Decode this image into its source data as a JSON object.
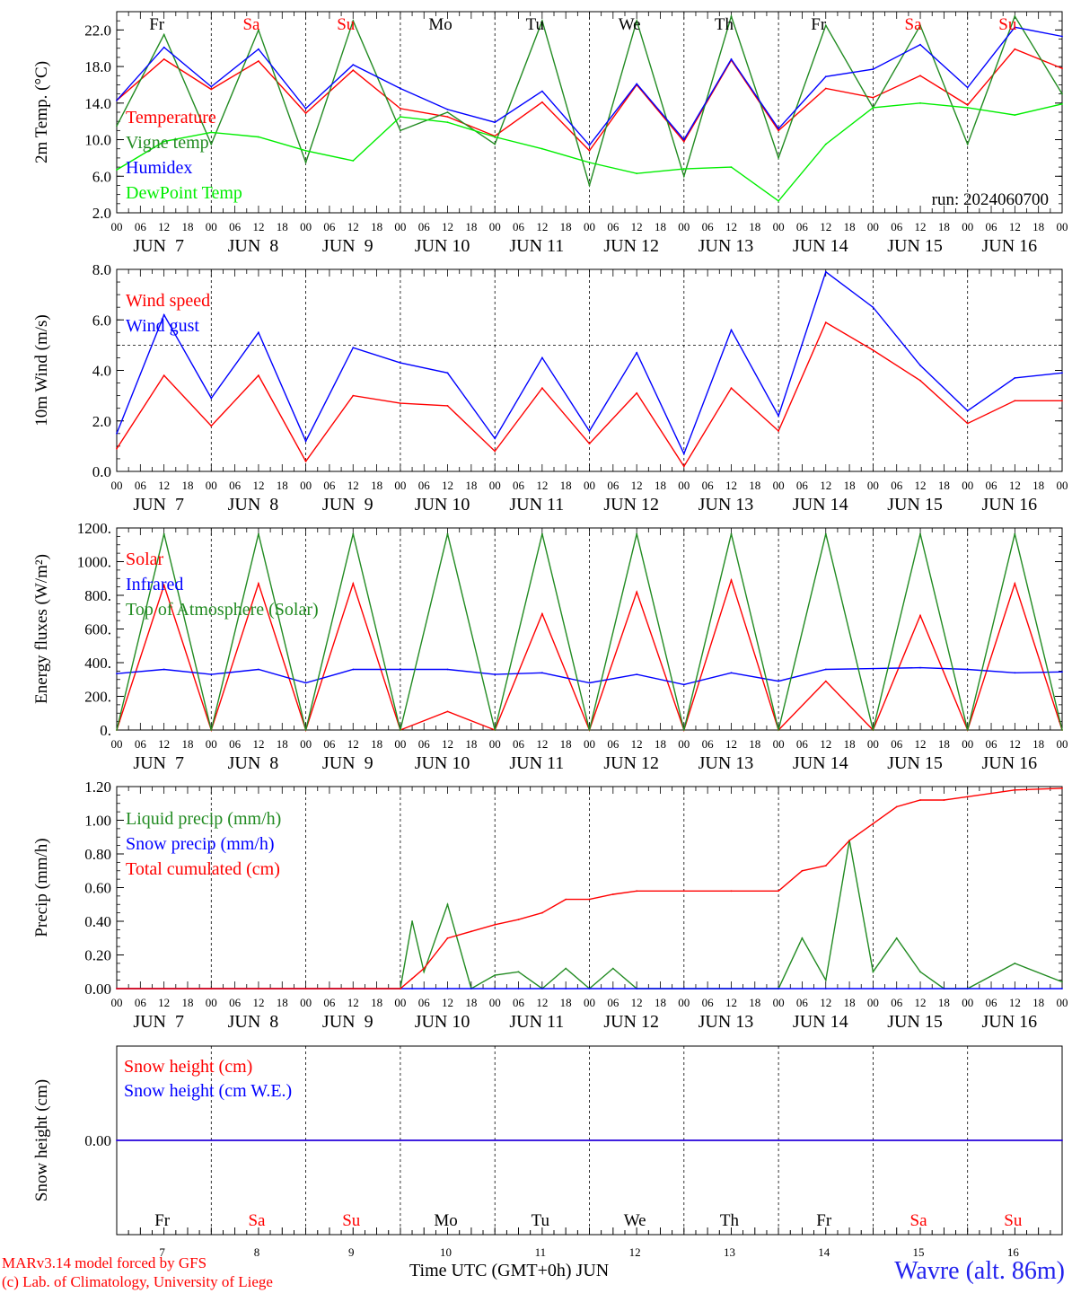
{
  "chart_data": [
    {
      "type": "line",
      "ylabel": "2m Temp. (°C)",
      "ylim": [
        2,
        24
      ],
      "yticks": [
        "2.0",
        "6.0",
        "10.0",
        "14.0",
        "18.0",
        "22.0"
      ],
      "ytick_values": [
        2,
        6,
        10,
        14,
        18,
        22
      ],
      "annotation": "run: 2024060700",
      "x_hours": [
        0,
        12,
        24,
        36,
        48,
        60,
        72,
        84,
        96,
        108,
        120,
        132,
        144,
        156,
        168,
        180,
        192,
        204,
        216,
        228,
        240
      ],
      "series": [
        {
          "name": "Temperature",
          "color": "#ff0000",
          "values": [
            14.3,
            18.8,
            15.5,
            18.6,
            12.9,
            17.6,
            13.4,
            12.5,
            10.4,
            14.1,
            8.8,
            16.0,
            9.8,
            18.7,
            11.0,
            15.6,
            14.6,
            17.0,
            13.8,
            19.9,
            17.8
          ]
        },
        {
          "name": "Vigne temp",
          "color": "#228b22",
          "values": [
            11.5,
            21.5,
            9.5,
            22.0,
            7.5,
            23.0,
            11.0,
            13.0,
            9.5,
            23.0,
            5.0,
            23.0,
            6.0,
            23.5,
            8.0,
            22.5,
            13.5,
            22.5,
            9.5,
            23.5,
            15.0
          ]
        },
        {
          "name": "Humidex",
          "color": "#0000ff",
          "values": [
            14.3,
            20.1,
            15.8,
            19.9,
            13.4,
            18.2,
            15.6,
            13.3,
            11.9,
            15.3,
            9.4,
            16.1,
            10.0,
            18.8,
            11.2,
            16.9,
            17.7,
            20.4,
            15.7,
            22.3,
            21.3
          ]
        },
        {
          "name": "DewPoint Temp",
          "color": "#00ee00",
          "values": [
            6.7,
            9.8,
            10.8,
            10.3,
            8.8,
            7.7,
            12.5,
            11.9,
            10.3,
            9.0,
            7.5,
            6.3,
            6.8,
            7.0,
            3.3,
            9.5,
            13.5,
            14.0,
            13.5,
            12.7,
            13.9
          ]
        }
      ]
    },
    {
      "type": "line",
      "ylabel": "10m Wind (m/s)",
      "ylim": [
        0,
        8
      ],
      "yticks": [
        "0.0",
        "2.0",
        "4.0",
        "6.0",
        "8.0"
      ],
      "ytick_values": [
        0,
        2,
        4,
        6,
        8
      ],
      "reference_line": 5,
      "x_hours": [
        0,
        12,
        24,
        36,
        48,
        60,
        72,
        84,
        96,
        108,
        120,
        132,
        144,
        156,
        168,
        180,
        192,
        204,
        216,
        228,
        240
      ],
      "series": [
        {
          "name": "Wind speed",
          "color": "#ff0000",
          "values": [
            0.9,
            3.8,
            1.8,
            3.8,
            0.4,
            3.0,
            2.7,
            2.6,
            0.8,
            3.3,
            1.1,
            3.1,
            0.2,
            3.3,
            1.6,
            5.9,
            4.8,
            3.6,
            1.9,
            2.8,
            2.8
          ]
        },
        {
          "name": "Wind gust",
          "color": "#0000ff",
          "values": [
            1.5,
            6.2,
            2.9,
            5.5,
            1.2,
            4.9,
            4.3,
            3.9,
            1.3,
            4.5,
            1.6,
            4.7,
            0.7,
            5.6,
            2.2,
            7.9,
            6.5,
            4.2,
            2.4,
            3.7,
            3.9
          ]
        }
      ]
    },
    {
      "type": "line",
      "ylabel": "Energy fluxes (W/m²)",
      "ylim": [
        0,
        1200
      ],
      "yticks": [
        "0.",
        "200.",
        "400.",
        "600.",
        "800.",
        "1000.",
        "1200."
      ],
      "ytick_values": [
        0,
        200,
        400,
        600,
        800,
        1000,
        1200
      ],
      "x_hours": [
        0,
        12,
        24,
        36,
        48,
        60,
        72,
        84,
        96,
        108,
        120,
        132,
        144,
        156,
        168,
        180,
        192,
        204,
        216,
        228,
        240
      ],
      "series": [
        {
          "name": "Solar",
          "color": "#ff0000",
          "values": [
            0,
            860,
            0,
            870,
            0,
            870,
            0,
            110,
            0,
            690,
            0,
            820,
            0,
            890,
            0,
            290,
            0,
            680,
            0,
            870,
            0
          ]
        },
        {
          "name": "Infrared",
          "color": "#0000ff",
          "values": [
            335,
            360,
            330,
            360,
            280,
            360,
            360,
            360,
            330,
            340,
            280,
            330,
            270,
            340,
            290,
            360,
            365,
            370,
            360,
            340,
            345
          ]
        },
        {
          "name": "Top of Atmosphere (Solar)",
          "color": "#228b22",
          "values": [
            0,
            1165,
            0,
            1165,
            0,
            1165,
            0,
            1165,
            0,
            1165,
            0,
            1165,
            0,
            1165,
            0,
            1165,
            0,
            1165,
            0,
            1165,
            0
          ]
        }
      ]
    },
    {
      "type": "line",
      "ylabel": "Precip (mm/h)",
      "ylim": [
        0,
        1.2
      ],
      "yticks": [
        "0.00",
        "0.20",
        "0.40",
        "0.60",
        "0.80",
        "1.00",
        "1.20"
      ],
      "ytick_values": [
        0,
        0.2,
        0.4,
        0.6,
        0.8,
        1.0,
        1.2
      ],
      "x_hours": [
        0,
        12,
        24,
        36,
        48,
        60,
        72,
        75,
        78,
        84,
        90,
        96,
        102,
        108,
        114,
        120,
        126,
        132,
        144,
        156,
        168,
        174,
        180,
        186,
        192,
        198,
        204,
        210,
        216,
        228,
        240
      ],
      "series": [
        {
          "name": "Liquid precip (mm/h)",
          "color": "#228b22",
          "values": [
            0,
            0,
            0,
            0,
            0,
            0,
            0,
            0.4,
            0.1,
            0.5,
            0,
            0.08,
            0.1,
            0,
            0.12,
            0,
            0.12,
            0,
            0,
            0,
            0,
            0.3,
            0.05,
            0.88,
            0.1,
            0.3,
            0.1,
            0,
            0,
            0.15,
            0.04
          ]
        },
        {
          "name": "Snow precip (mm/h)",
          "color": "#0000ff",
          "values": [
            0,
            0,
            0,
            0,
            0,
            0,
            0,
            0,
            0,
            0,
            0,
            0,
            0,
            0,
            0,
            0,
            0,
            0,
            0,
            0,
            0,
            0,
            0,
            0,
            0,
            0,
            0,
            0,
            0,
            0,
            0
          ]
        },
        {
          "name": "Total cumulated (cm)",
          "color": "#ff0000",
          "values": [
            0,
            0,
            0,
            0,
            0,
            0,
            0,
            0.06,
            0.12,
            0.3,
            0.34,
            0.38,
            0.41,
            0.45,
            0.53,
            0.53,
            0.56,
            0.58,
            0.58,
            0.58,
            0.58,
            0.7,
            0.73,
            0.88,
            0.98,
            1.08,
            1.12,
            1.12,
            1.14,
            1.18,
            1.19
          ]
        }
      ]
    },
    {
      "type": "line",
      "ylabel": "Snow height (cm)",
      "ylim": [
        -1,
        1
      ],
      "yticks": [
        "0.00"
      ],
      "ytick_values": [
        0
      ],
      "x_hours": [
        0,
        240
      ],
      "series": [
        {
          "name": "Snow height (cm)",
          "color": "#ff0000",
          "values": [
            0,
            0
          ]
        },
        {
          "name": "Snow height (cm W.E.)",
          "color": "#0000ff",
          "values": [
            0,
            0
          ]
        }
      ]
    }
  ],
  "days": [
    {
      "abbr": "Fr",
      "weekend": false,
      "date_label": "JUN  7",
      "num": "7"
    },
    {
      "abbr": "Sa",
      "weekend": true,
      "date_label": "JUN  8",
      "num": "8"
    },
    {
      "abbr": "Su",
      "weekend": true,
      "date_label": "JUN  9",
      "num": "9"
    },
    {
      "abbr": "Mo",
      "weekend": false,
      "date_label": "JUN 10",
      "num": "10"
    },
    {
      "abbr": "Tu",
      "weekend": false,
      "date_label": "JUN 11",
      "num": "11"
    },
    {
      "abbr": "We",
      "weekend": false,
      "date_label": "JUN 12",
      "num": "12"
    },
    {
      "abbr": "Th",
      "weekend": false,
      "date_label": "JUN 13",
      "num": "13"
    },
    {
      "abbr": "Fr",
      "weekend": false,
      "date_label": "JUN 14",
      "num": "14"
    },
    {
      "abbr": "Sa",
      "weekend": true,
      "date_label": "JUN 15",
      "num": "15"
    },
    {
      "abbr": "Su",
      "weekend": true,
      "date_label": "JUN 16",
      "num": "16"
    }
  ],
  "hour_labels": [
    "00",
    "06",
    "12",
    "18"
  ],
  "final_hour_label": "00",
  "weekend_color": "#ff0000",
  "weekday_color": "#000000",
  "footer": {
    "model_credit": "MARv3.14 model forced by GFS",
    "lab_credit": "(c) Lab. of Climatology, University of Liege",
    "xlabel": "Time UTC (GMT+0h) JUN",
    "station": "Wavre (alt. 86m)"
  }
}
